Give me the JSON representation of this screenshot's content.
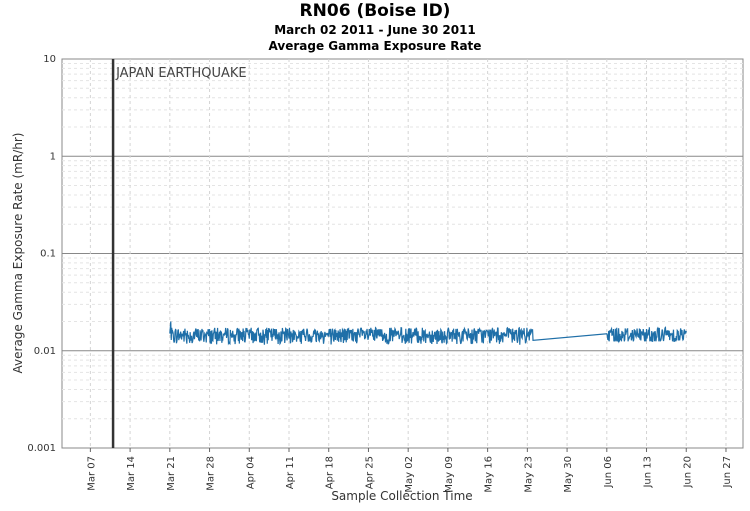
{
  "chart_data": {
    "type": "line",
    "title": "RN06 (Boise ID)",
    "subtitle": "March 02 2011 - June 30 2011",
    "subtitle2": "Average Gamma Exposure Rate",
    "xlabel": "Sample Collection Time",
    "ylabel": "Average Gamma Exposure Rate (mR/hr)",
    "yscale": "log",
    "ylim": [
      0.001,
      10
    ],
    "xlim": [
      "2011-03-02",
      "2011-06-30"
    ],
    "yticks": [
      "10",
      "1",
      "0.1",
      "0.01",
      "0.001"
    ],
    "xticks": [
      "Mar 07",
      "Mar 14",
      "Mar 21",
      "Mar 28",
      "Apr 04",
      "Apr 11",
      "Apr 18",
      "Apr 25",
      "May 02",
      "May 09",
      "May 16",
      "May 23",
      "May 30",
      "Jun 06",
      "Jun 13",
      "Jun 20",
      "Jun 27"
    ],
    "grid": true,
    "annotation": {
      "label": "JAPAN EARTHQUAKE",
      "x": "2011-03-11"
    },
    "color": "#1f6fa8",
    "series": [
      {
        "segments": [
          {
            "start": "2011-03-21",
            "end": "2011-05-24",
            "mean": 0.0145,
            "min": 0.0115,
            "max": 0.02
          },
          {
            "start": "2011-06-06",
            "end": "2011-06-20",
            "mean": 0.0147,
            "min": 0.0125,
            "max": 0.0175
          }
        ]
      }
    ]
  }
}
